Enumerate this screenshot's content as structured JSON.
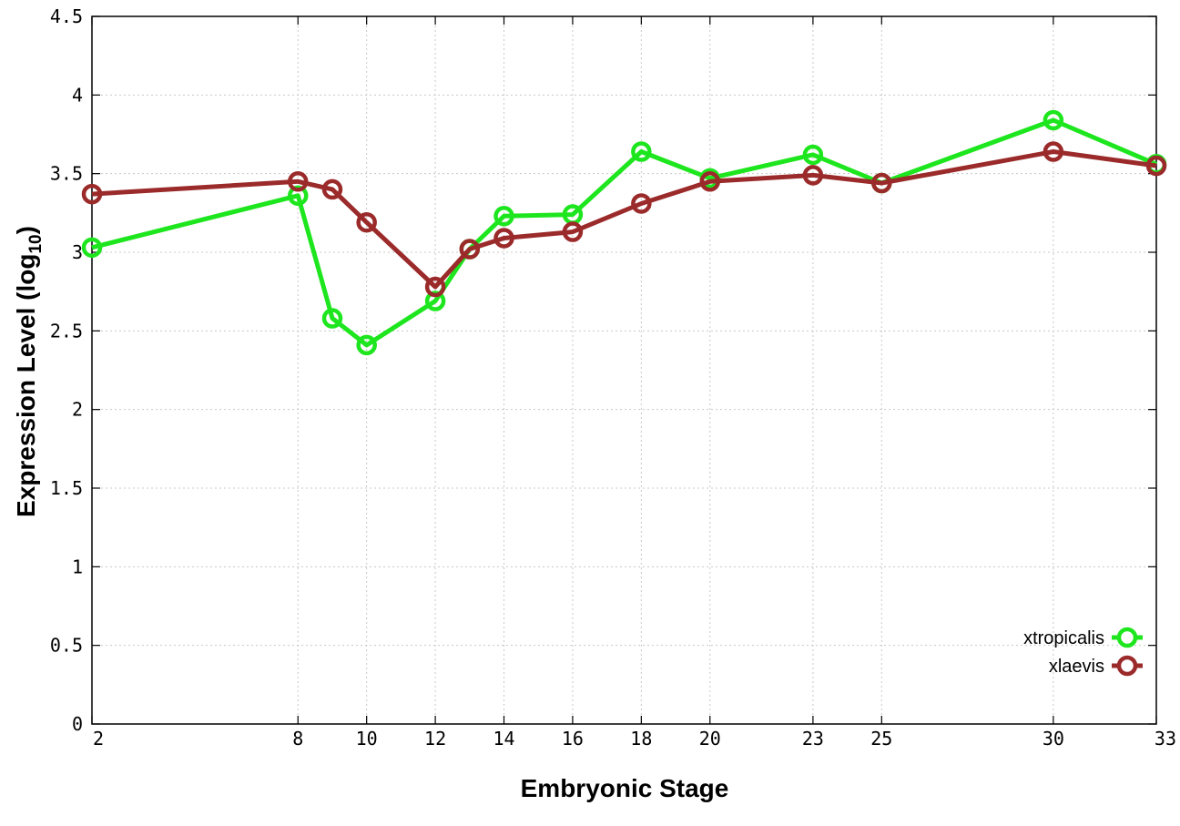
{
  "chart_data": {
    "type": "line",
    "xlabel": "Embryonic Stage",
    "ylabel_main": "Expression Level (log",
    "ylabel_sub": "10",
    "ylabel_close": ")",
    "xlim": [
      2,
      33
    ],
    "ylim": [
      0,
      4.5
    ],
    "x_ticks": [
      2,
      8,
      10,
      12,
      14,
      16,
      18,
      20,
      23,
      25,
      30,
      33
    ],
    "x_tick_labels": [
      "2",
      "8",
      "10",
      "12",
      "14",
      "16",
      "18",
      "20",
      "23",
      "25",
      "30",
      "33"
    ],
    "y_ticks": [
      0,
      0.5,
      1,
      1.5,
      2,
      2.5,
      3,
      3.5,
      4,
      4.5
    ],
    "y_tick_labels": [
      "0",
      "0.5",
      "1",
      "1.5",
      "2",
      "2.5",
      "3",
      "3.5",
      "4",
      "4.5"
    ],
    "grid": true,
    "legend_position": "bottom-right",
    "series": [
      {
        "name": "xtropicalis",
        "color": "#1ee61e",
        "x": [
          2,
          8,
          9,
          10,
          12,
          13,
          14,
          16,
          18,
          20,
          23,
          25,
          30,
          33
        ],
        "values": [
          3.03,
          3.36,
          2.58,
          2.41,
          2.69,
          3.02,
          3.23,
          3.24,
          3.64,
          3.47,
          3.62,
          3.44,
          3.84,
          3.56
        ]
      },
      {
        "name": "xlaevis",
        "color": "#9b2a2a",
        "x": [
          2,
          8,
          9,
          10,
          12,
          13,
          14,
          16,
          18,
          20,
          23,
          25,
          30,
          33
        ],
        "values": [
          3.37,
          3.45,
          3.4,
          3.19,
          2.78,
          3.02,
          3.09,
          3.13,
          3.31,
          3.45,
          3.49,
          3.44,
          3.64,
          3.55
        ]
      }
    ]
  }
}
